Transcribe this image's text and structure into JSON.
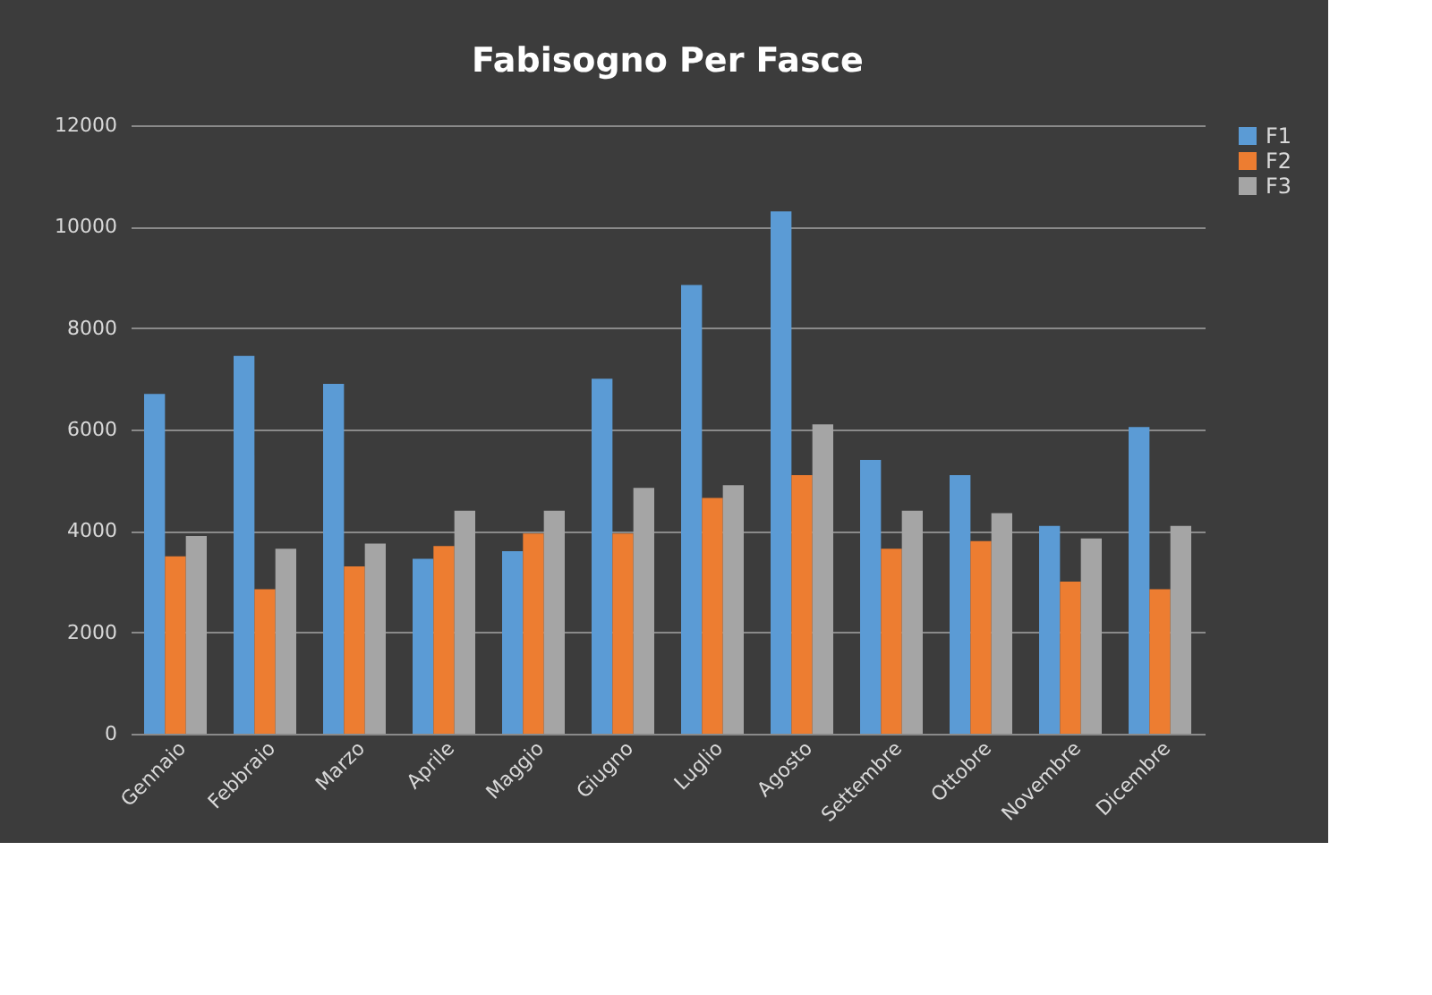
{
  "chart_data": {
    "type": "bar",
    "title": "Fabisogno Per Fasce",
    "categories": [
      "Gennaio",
      "Febbraio",
      "Marzo",
      "Aprile",
      "Maggio",
      "Giugno",
      "Luglio",
      "Agosto",
      "Settembre",
      "Ottobre",
      "Novembre",
      "Dicembre"
    ],
    "series": [
      {
        "name": "F1",
        "color": "#5b9bd5",
        "values": [
          6700,
          7450,
          6900,
          3450,
          3600,
          7000,
          8850,
          10300,
          5400,
          5100,
          4100,
          6050
        ]
      },
      {
        "name": "F2",
        "color": "#ed7d31",
        "values": [
          3500,
          2850,
          3300,
          3700,
          3950,
          3950,
          4650,
          5100,
          3650,
          3800,
          3000,
          2850
        ]
      },
      {
        "name": "F3",
        "color": "#a5a5a5",
        "values": [
          3900,
          3650,
          3750,
          4400,
          4400,
          4850,
          4900,
          6100,
          4400,
          4350,
          3850,
          4100
        ]
      }
    ],
    "ylim": [
      0,
      12000
    ],
    "yticks": [
      0,
      2000,
      4000,
      6000,
      8000,
      10000,
      12000
    ],
    "grid": "y",
    "legend": "right"
  }
}
